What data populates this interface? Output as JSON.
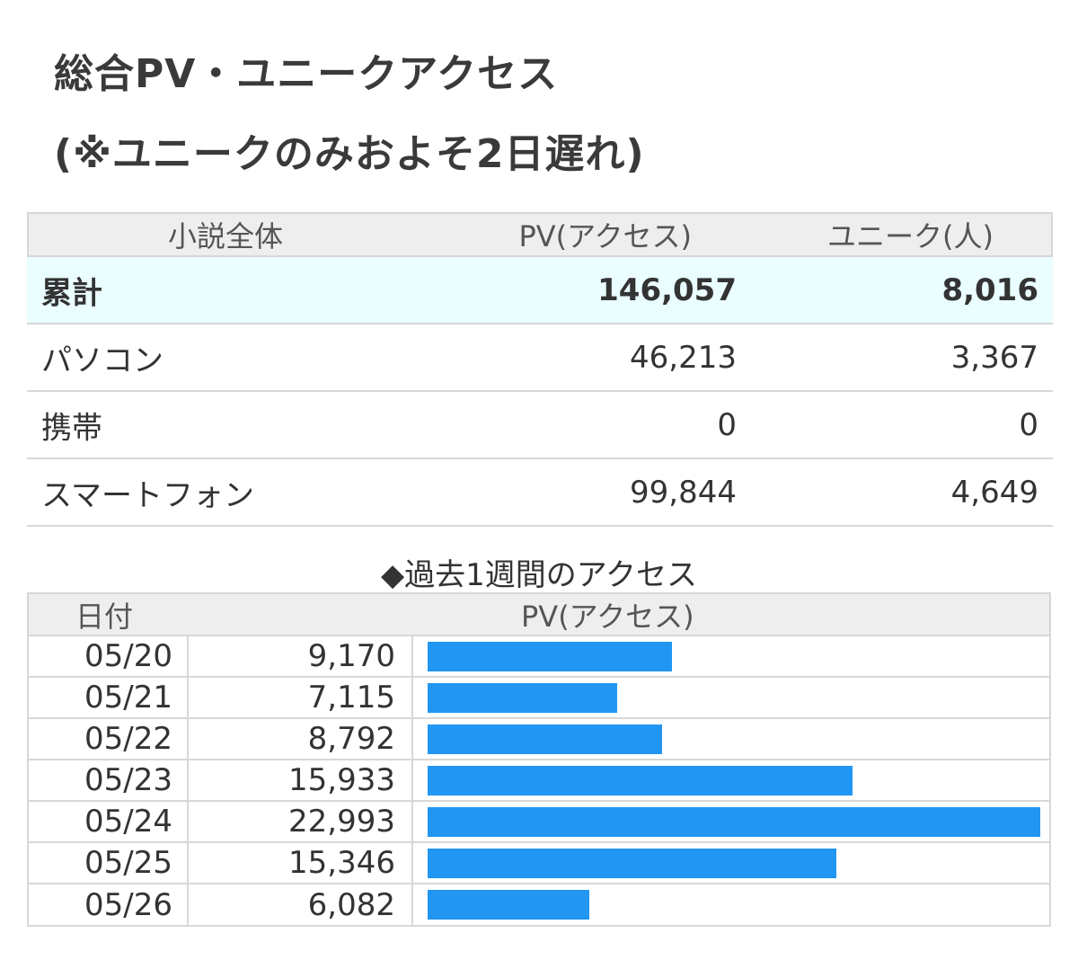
{
  "title": {
    "line1": "総合PV・ユニークアクセス",
    "line2": "(※ユニークのみおよそ2日遅れ)"
  },
  "summary": {
    "headers": [
      "小説全体",
      "PV(アクセス)",
      "ユニーク(人)"
    ],
    "rows": [
      {
        "label": "累計",
        "pv": "146,057",
        "unique": "8,016"
      },
      {
        "label": "パソコン",
        "pv": "46,213",
        "unique": "3,367"
      },
      {
        "label": "携帯",
        "pv": "0",
        "unique": "0"
      },
      {
        "label": "スマートフォン",
        "pv": "99,844",
        "unique": "4,649"
      }
    ]
  },
  "weekly": {
    "title": "◆過去1週間のアクセス",
    "headers": [
      "日付",
      "PV(アクセス)"
    ],
    "bar_color": "#2196f3",
    "max_value": 22993
  },
  "chart_data": {
    "type": "bar",
    "orientation": "horizontal",
    "categories": [
      "05/20",
      "05/21",
      "05/22",
      "05/23",
      "05/24",
      "05/25",
      "05/26"
    ],
    "values": [
      9170,
      7115,
      8792,
      15933,
      22993,
      15346,
      6082
    ],
    "labels": [
      "9,170",
      "7,115",
      "8,792",
      "15,933",
      "22,993",
      "15,346",
      "6,082"
    ]
  }
}
